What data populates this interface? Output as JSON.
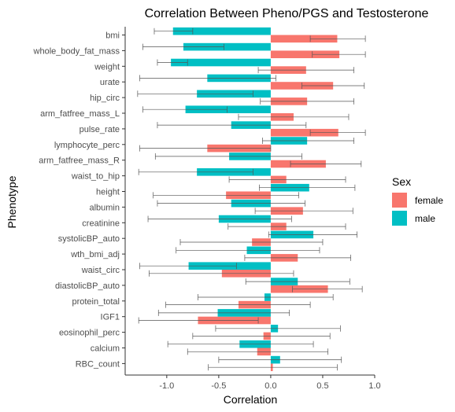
{
  "chart_data": {
    "type": "bar",
    "orientation": "horizontal",
    "title": "Correlation Between Pheno/PGS and Testosterone",
    "xlabel": "Correlation",
    "ylabel": "Phenotype",
    "xlim": [
      -1.4,
      1.0
    ],
    "xticks": [
      {
        "value": -1.0,
        "label": "-1.0"
      },
      {
        "value": -0.5,
        "label": "-0.5"
      },
      {
        "value": 0.0,
        "label": "0.0"
      },
      {
        "value": 0.5,
        "label": "0.5"
      },
      {
        "value": 1.0,
        "label": "1.0"
      }
    ],
    "grid": false,
    "legend": {
      "title": "Sex",
      "position": "right"
    },
    "colors": {
      "female": "#F8766D",
      "male": "#00BFC4",
      "errorbar": "#000000"
    },
    "categories": [
      "bmi",
      "whole_body_fat_mass",
      "weight",
      "urate",
      "hip_circ",
      "arm_fatfree_mass_L",
      "pulse_rate",
      "lymphocyte_perc",
      "arm_fatfree_mass_R",
      "waist_to_hip",
      "height",
      "albumin",
      "creatinine",
      "systolicBP_auto",
      "wth_bmi_adj",
      "waist_circ",
      "diastolicBP_auto",
      "protein_total",
      "IGF1",
      "eosinophil_perc",
      "calcium",
      "RBC_count"
    ],
    "series": [
      {
        "name": "female",
        "values": [
          0.64,
          0.66,
          0.34,
          0.6,
          0.35,
          0.22,
          0.65,
          -0.61,
          0.53,
          0.15,
          -0.43,
          0.31,
          0.15,
          -0.18,
          0.26,
          -0.47,
          0.55,
          -0.31,
          -0.7,
          -0.07,
          -0.13,
          0.02
        ],
        "ci": [
          [
            0.38,
            0.91
          ],
          [
            0.4,
            0.91
          ],
          [
            -0.12,
            0.8
          ],
          [
            0.3,
            0.9
          ],
          [
            -0.1,
            0.8
          ],
          [
            -0.31,
            0.75
          ],
          [
            0.38,
            0.91
          ],
          [
            -1.26,
            0.0
          ],
          [
            0.19,
            0.87
          ],
          [
            -0.4,
            0.72
          ],
          [
            -1.13,
            0.27
          ],
          [
            -0.15,
            0.79
          ],
          [
            -0.41,
            0.72
          ],
          [
            -0.87,
            0.5
          ],
          [
            -0.25,
            0.77
          ],
          [
            -1.17,
            0.22
          ],
          [
            0.21,
            0.88
          ],
          [
            -1.01,
            0.38
          ],
          [
            -1.27,
            -0.12
          ],
          [
            -0.75,
            0.57
          ],
          [
            -0.8,
            0.55
          ],
          [
            -0.6,
            0.64
          ]
        ]
      },
      {
        "name": "male",
        "values": [
          -0.94,
          -0.84,
          -0.96,
          -0.61,
          -0.71,
          -0.82,
          -0.38,
          0.35,
          -0.4,
          -0.71,
          0.37,
          -0.38,
          -0.5,
          0.41,
          -0.23,
          -0.79,
          0.26,
          -0.06,
          -0.51,
          0.07,
          -0.3,
          0.09
        ],
        "ci": [
          [
            -1.12,
            -0.75
          ],
          [
            -1.23,
            -0.45
          ],
          [
            -1.09,
            -0.8
          ],
          [
            -1.26,
            0.05
          ],
          [
            -1.28,
            -0.17
          ],
          [
            -1.23,
            -0.42
          ],
          [
            -1.09,
            0.34
          ],
          [
            -0.08,
            0.8
          ],
          [
            -1.11,
            0.3
          ],
          [
            -1.27,
            -0.17
          ],
          [
            -0.11,
            0.81
          ],
          [
            -1.09,
            0.33
          ],
          [
            -1.18,
            0.2
          ],
          [
            -0.02,
            0.83
          ],
          [
            -0.91,
            0.47
          ],
          [
            -1.26,
            -0.33
          ],
          [
            -0.24,
            0.76
          ],
          [
            -0.7,
            0.6
          ],
          [
            -1.08,
            0.18
          ],
          [
            -0.53,
            0.67
          ],
          [
            -0.99,
            0.41
          ],
          [
            -0.5,
            0.68
          ]
        ]
      }
    ]
  }
}
